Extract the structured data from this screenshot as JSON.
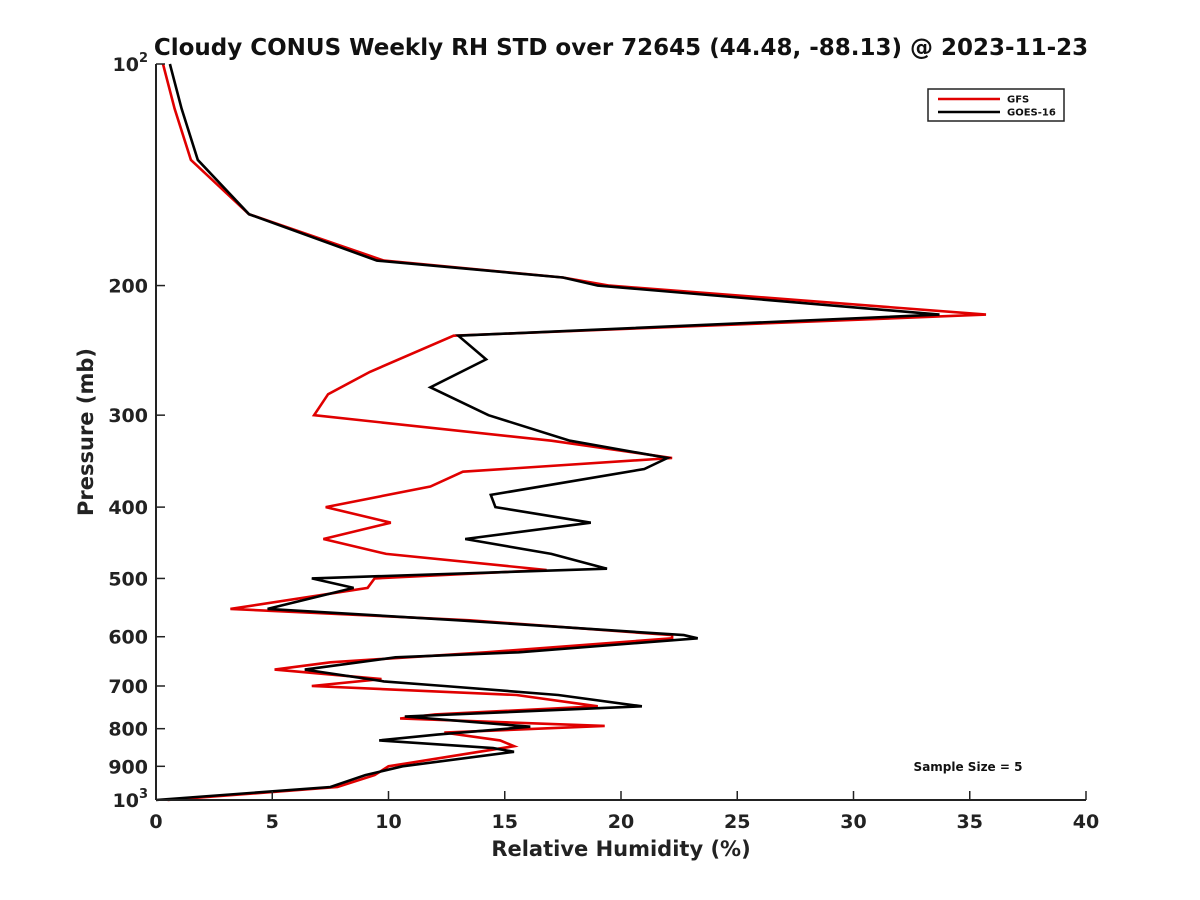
{
  "chart_data": {
    "type": "line",
    "title": "Cloudy CONUS Weekly RH STD over 72645 (44.48, -88.13) @ 2023-11-23",
    "xlabel": "Relative Humidity (%)",
    "ylabel": "Pressure (mb)",
    "xlim": [
      0,
      40
    ],
    "ylim": [
      1000,
      100
    ],
    "y_scale": "log",
    "y_reversed": true,
    "grid": false,
    "legend_position": "top-right",
    "x_ticks": [
      0,
      5,
      10,
      15,
      20,
      25,
      30,
      35,
      40
    ],
    "x_tick_labels": [
      "0",
      "5",
      "10",
      "15",
      "20",
      "25",
      "30",
      "35",
      "40"
    ],
    "y_ticks": [
      100,
      200,
      300,
      400,
      500,
      600,
      700,
      800,
      900,
      1000
    ],
    "y_tick_labels": [
      {
        "base": "10",
        "exp": "2"
      },
      {
        "base": "200",
        "exp": ""
      },
      {
        "base": "300",
        "exp": ""
      },
      {
        "base": "400",
        "exp": ""
      },
      {
        "base": "500",
        "exp": ""
      },
      {
        "base": "600",
        "exp": ""
      },
      {
        "base": "700",
        "exp": ""
      },
      {
        "base": "800",
        "exp": ""
      },
      {
        "base": "900",
        "exp": ""
      },
      {
        "base": "10",
        "exp": "3"
      }
    ],
    "annotation": "Sample Size = 5",
    "series": [
      {
        "name": "GFS",
        "color": "#e00000",
        "points": [
          [
            0.3,
            100
          ],
          [
            0.8,
            115
          ],
          [
            1.5,
            135
          ],
          [
            4.0,
            160
          ],
          [
            9.8,
            185
          ],
          [
            17.5,
            195
          ],
          [
            19.5,
            200
          ],
          [
            35.7,
            219
          ],
          [
            12.8,
            234
          ],
          [
            9.2,
            262
          ],
          [
            7.4,
            281
          ],
          [
            6.8,
            300
          ],
          [
            17.0,
            325
          ],
          [
            22.2,
            343
          ],
          [
            13.2,
            358
          ],
          [
            11.8,
            375
          ],
          [
            7.3,
            400
          ],
          [
            10.1,
            420
          ],
          [
            7.2,
            442
          ],
          [
            9.9,
            463
          ],
          [
            16.8,
            487
          ],
          [
            9.4,
            500
          ],
          [
            9.1,
            515
          ],
          [
            3.2,
            550
          ],
          [
            13.5,
            570
          ],
          [
            22.2,
            597
          ],
          [
            22.2,
            603
          ],
          [
            14.2,
            630
          ],
          [
            7.5,
            650
          ],
          [
            5.1,
            665
          ],
          [
            9.7,
            685
          ],
          [
            6.7,
            700
          ],
          [
            15.5,
            720
          ],
          [
            19.0,
            746
          ],
          [
            12.0,
            765
          ],
          [
            10.5,
            775
          ],
          [
            19.3,
            793
          ],
          [
            12.4,
            810
          ],
          [
            14.8,
            830
          ],
          [
            15.4,
            845
          ],
          [
            10.0,
            900
          ],
          [
            9.4,
            925
          ],
          [
            7.8,
            960
          ],
          [
            0.5,
            1000
          ]
        ]
      },
      {
        "name": "GOES-16",
        "color": "#000000",
        "points": [
          [
            0.6,
            100
          ],
          [
            1.1,
            115
          ],
          [
            1.8,
            135
          ],
          [
            4.0,
            160
          ],
          [
            9.5,
            185
          ],
          [
            17.5,
            195
          ],
          [
            19.0,
            200
          ],
          [
            33.7,
            219
          ],
          [
            13.0,
            234
          ],
          [
            14.2,
            252
          ],
          [
            11.8,
            275
          ],
          [
            14.3,
            300
          ],
          [
            17.8,
            325
          ],
          [
            22.0,
            343
          ],
          [
            21.0,
            355
          ],
          [
            14.4,
            385
          ],
          [
            14.6,
            400
          ],
          [
            18.7,
            420
          ],
          [
            13.3,
            442
          ],
          [
            17.0,
            463
          ],
          [
            19.4,
            485
          ],
          [
            6.7,
            500
          ],
          [
            8.5,
            515
          ],
          [
            4.8,
            550
          ],
          [
            13.0,
            570
          ],
          [
            22.7,
            597
          ],
          [
            23.3,
            603
          ],
          [
            15.6,
            630
          ],
          [
            10.3,
            640
          ],
          [
            6.4,
            665
          ],
          [
            9.8,
            690
          ],
          [
            12.4,
            700
          ],
          [
            17.3,
            720
          ],
          [
            20.9,
            746
          ],
          [
            10.7,
            770
          ],
          [
            16.1,
            795
          ],
          [
            12.1,
            815
          ],
          [
            9.6,
            830
          ],
          [
            14.5,
            850
          ],
          [
            15.4,
            860
          ],
          [
            10.6,
            900
          ],
          [
            9.0,
            925
          ],
          [
            7.5,
            960
          ],
          [
            0.0,
            1000
          ]
        ]
      }
    ]
  }
}
